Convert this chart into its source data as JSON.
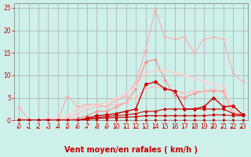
{
  "xlabel": "Vent moyen/en rafales ( km/h )",
  "xlim": [
    -0.5,
    23.5
  ],
  "ylim": [
    0,
    26
  ],
  "xticks": [
    0,
    1,
    2,
    3,
    4,
    5,
    6,
    7,
    8,
    9,
    10,
    11,
    12,
    13,
    14,
    15,
    16,
    17,
    18,
    19,
    20,
    21,
    22,
    23
  ],
  "yticks": [
    0,
    5,
    10,
    15,
    20,
    25
  ],
  "background_color": "#cef0ea",
  "grid_color": "#aaaaaa",
  "lines": [
    {
      "x": [
        0,
        1,
        2,
        3,
        4,
        5,
        6,
        7,
        8,
        9,
        10,
        11,
        12,
        13,
        14,
        15,
        16,
        17,
        18,
        19,
        20,
        21,
        22,
        23
      ],
      "y": [
        0,
        0,
        0,
        0,
        0,
        0,
        0,
        0,
        0,
        0,
        0,
        0,
        0,
        0,
        0,
        0,
        0,
        0,
        0,
        0,
        0,
        0,
        0,
        0
      ],
      "color": "#cc0000",
      "lw": 0.8,
      "marker": "D",
      "ms": 1.5,
      "zorder": 4
    },
    {
      "x": [
        0,
        1,
        2,
        3,
        4,
        5,
        6,
        7,
        8,
        9,
        10,
        11,
        12,
        13,
        14,
        15,
        16,
        17,
        18,
        19,
        20,
        21,
        22,
        23
      ],
      "y": [
        0,
        0,
        0,
        0,
        0,
        0,
        0,
        0.2,
        0.4,
        0.5,
        0.6,
        0.7,
        0.8,
        1.0,
        1.0,
        1.0,
        1.0,
        1.0,
        1.0,
        1.0,
        1.2,
        1.2,
        1.0,
        1.0
      ],
      "color": "#cc0000",
      "lw": 0.8,
      "marker": "D",
      "ms": 1.5,
      "zorder": 4
    },
    {
      "x": [
        0,
        1,
        2,
        3,
        4,
        5,
        6,
        7,
        8,
        9,
        10,
        11,
        12,
        13,
        14,
        15,
        16,
        17,
        18,
        19,
        20,
        21,
        22,
        23
      ],
      "y": [
        0,
        0,
        0,
        0,
        0,
        0,
        0,
        0.3,
        0.6,
        0.8,
        1.0,
        1.2,
        1.5,
        2.0,
        2.0,
        2.5,
        2.5,
        2.5,
        2.5,
        2.5,
        2.5,
        2.5,
        1.5,
        1.2
      ],
      "color": "#cc0000",
      "lw": 0.8,
      "marker": "D",
      "ms": 1.5,
      "zorder": 4
    },
    {
      "x": [
        0,
        1,
        2,
        3,
        4,
        5,
        6,
        7,
        8,
        9,
        10,
        11,
        12,
        13,
        14,
        15,
        16,
        17,
        18,
        19,
        20,
        21,
        22,
        23
      ],
      "y": [
        0,
        0,
        0,
        0,
        0,
        0,
        0,
        0.5,
        1.0,
        1.2,
        1.5,
        2.0,
        2.5,
        8.0,
        8.5,
        7.0,
        6.5,
        2.5,
        2.5,
        3.0,
        5.0,
        3.0,
        3.2,
        1.2
      ],
      "color": "#cc0000",
      "lw": 1.0,
      "marker": "D",
      "ms": 2.0,
      "zorder": 4
    },
    {
      "x": [
        0,
        1,
        2,
        3,
        4,
        5,
        6,
        7,
        8,
        9,
        10,
        11,
        12,
        13,
        14,
        15,
        16,
        17,
        18,
        19,
        20,
        21,
        22,
        23
      ],
      "y": [
        3.0,
        0,
        0,
        0,
        0,
        5.5,
        3.0,
        3.5,
        3.5,
        3.0,
        4.5,
        5.5,
        8.5,
        15.5,
        24.5,
        18.5,
        18.0,
        18.5,
        15.0,
        18.0,
        18.5,
        18.0,
        10.5,
        8.5
      ],
      "color": "#ffaaaa",
      "lw": 0.8,
      "marker": "+",
      "ms": 2.5,
      "zorder": 3
    },
    {
      "x": [
        0,
        1,
        2,
        3,
        4,
        5,
        6,
        7,
        8,
        9,
        10,
        11,
        12,
        13,
        14,
        15,
        16,
        17,
        18,
        19,
        20,
        21,
        22,
        23
      ],
      "y": [
        0,
        0,
        0,
        0,
        0,
        0,
        0.5,
        1.0,
        2.0,
        2.0,
        3.0,
        4.0,
        7.0,
        13.0,
        13.5,
        9.0,
        5.5,
        5.0,
        6.0,
        6.5,
        6.5,
        6.5,
        1.0,
        1.2
      ],
      "color": "#ff8888",
      "lw": 0.8,
      "marker": "+",
      "ms": 2.5,
      "zorder": 3
    },
    {
      "x": [
        0,
        1,
        2,
        3,
        4,
        5,
        6,
        7,
        8,
        9,
        10,
        11,
        12,
        13,
        14,
        15,
        16,
        17,
        18,
        19,
        20,
        21,
        22,
        23
      ],
      "y": [
        0.5,
        0,
        0,
        0,
        0,
        0.5,
        1.5,
        2.5,
        3.0,
        3.2,
        3.5,
        4.0,
        5.0,
        7.0,
        7.5,
        7.0,
        6.5,
        6.0,
        6.5,
        6.5,
        7.0,
        6.0,
        1.5,
        1.2
      ],
      "color": "#ffbbbb",
      "lw": 0.8,
      "marker": "+",
      "ms": 2.5,
      "zorder": 3
    },
    {
      "x": [
        0,
        1,
        2,
        3,
        4,
        5,
        6,
        7,
        8,
        9,
        10,
        11,
        12,
        13,
        14,
        15,
        16,
        17,
        18,
        19,
        20,
        21,
        22,
        23
      ],
      "y": [
        0,
        0,
        0,
        0.5,
        0.5,
        1.0,
        2.5,
        3.2,
        3.5,
        4.0,
        5.0,
        6.0,
        7.5,
        10.5,
        11.0,
        11.0,
        10.5,
        10.0,
        9.5,
        8.5,
        8.0,
        7.5,
        2.0,
        1.5
      ],
      "color": "#ffcccc",
      "lw": 1.0,
      "marker": "+",
      "ms": 2.5,
      "zorder": 3
    }
  ],
  "xlabel_fontsize": 7,
  "tick_fontsize": 5.5,
  "label_color": "#cc0000",
  "spine_color": "#888888"
}
